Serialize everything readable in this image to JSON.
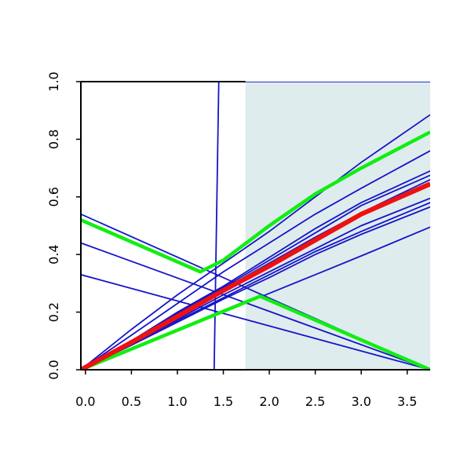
{
  "chart_data": {
    "type": "line",
    "title": "",
    "xlabel": "",
    "ylabel": "",
    "xlim": [
      -0.05,
      3.75
    ],
    "ylim": [
      0,
      1
    ],
    "grid": false,
    "x_ticks": [
      "0.0",
      "0.5",
      "1.0",
      "1.5",
      "2.0",
      "2.5",
      "3.0",
      "3.5"
    ],
    "y_ticks": [
      "0.0",
      "0.2",
      "0.4",
      "0.6",
      "0.8",
      "1.0"
    ],
    "shaded_region": {
      "x_from": 1.74,
      "x_to": 3.75,
      "y_from": 0,
      "y_to": 1,
      "color": "#dfeced"
    },
    "colors": {
      "thin": "#1515c8",
      "mean": "#ee1111",
      "band": "#11ee11",
      "axis": "#000000"
    },
    "series": [
      {
        "style": "thin",
        "points": [
          [
            -0.05,
            0
          ],
          [
            1.4,
            0
          ],
          [
            1.45,
            1
          ],
          [
            3.75,
            1
          ]
        ]
      },
      {
        "style": "thin",
        "points": [
          [
            -0.05,
            0.54
          ],
          [
            3.75,
            0
          ]
        ]
      },
      {
        "style": "thin",
        "points": [
          [
            -0.05,
            0.44
          ],
          [
            3.75,
            0
          ]
        ]
      },
      {
        "style": "thin",
        "points": [
          [
            -0.05,
            0.33
          ],
          [
            3.75,
            0
          ]
        ]
      },
      {
        "style": "thin",
        "points": [
          [
            -0.05,
            0
          ],
          [
            0.5,
            0.14
          ],
          [
            1.0,
            0.26
          ],
          [
            1.5,
            0.37
          ],
          [
            2.0,
            0.48
          ],
          [
            2.5,
            0.6
          ],
          [
            3.0,
            0.72
          ],
          [
            3.75,
            0.885
          ]
        ]
      },
      {
        "style": "thin",
        "points": [
          [
            -0.05,
            0
          ],
          [
            0.5,
            0.12
          ],
          [
            1.0,
            0.23
          ],
          [
            1.5,
            0.34
          ],
          [
            2.0,
            0.44
          ],
          [
            2.5,
            0.54
          ],
          [
            3.0,
            0.63
          ],
          [
            3.75,
            0.76
          ]
        ]
      },
      {
        "style": "thin",
        "points": [
          [
            -0.05,
            0
          ],
          [
            0.5,
            0.1
          ],
          [
            1.0,
            0.2
          ],
          [
            1.5,
            0.29
          ],
          [
            2.0,
            0.39
          ],
          [
            2.5,
            0.49
          ],
          [
            3.0,
            0.58
          ],
          [
            3.75,
            0.69
          ]
        ]
      },
      {
        "style": "thin",
        "points": [
          [
            -0.05,
            0
          ],
          [
            0.5,
            0.1
          ],
          [
            1.0,
            0.195
          ],
          [
            1.5,
            0.285
          ],
          [
            2.0,
            0.38
          ],
          [
            2.5,
            0.475
          ],
          [
            3.0,
            0.57
          ],
          [
            3.75,
            0.675
          ]
        ]
      },
      {
        "style": "thin",
        "points": [
          [
            -0.05,
            0
          ],
          [
            0.5,
            0.095
          ],
          [
            1.0,
            0.19
          ],
          [
            1.5,
            0.28
          ],
          [
            2.0,
            0.37
          ],
          [
            2.5,
            0.46
          ],
          [
            3.0,
            0.545
          ],
          [
            3.75,
            0.66
          ]
        ]
      },
      {
        "style": "thin",
        "points": [
          [
            -0.05,
            0
          ],
          [
            0.5,
            0.09
          ],
          [
            1.0,
            0.175
          ],
          [
            1.5,
            0.26
          ],
          [
            2.0,
            0.34
          ],
          [
            2.5,
            0.42
          ],
          [
            3.0,
            0.5
          ],
          [
            3.75,
            0.595
          ]
        ]
      },
      {
        "style": "thin",
        "points": [
          [
            -0.05,
            0
          ],
          [
            0.5,
            0.09
          ],
          [
            1.0,
            0.17
          ],
          [
            1.5,
            0.25
          ],
          [
            2.0,
            0.33
          ],
          [
            2.5,
            0.41
          ],
          [
            3.0,
            0.48
          ],
          [
            3.75,
            0.58
          ]
        ]
      },
      {
        "style": "thin",
        "points": [
          [
            -0.05,
            0
          ],
          [
            0.5,
            0.085
          ],
          [
            1.0,
            0.165
          ],
          [
            1.5,
            0.245
          ],
          [
            2.0,
            0.32
          ],
          [
            2.5,
            0.4
          ],
          [
            3.0,
            0.47
          ],
          [
            3.75,
            0.565
          ]
        ]
      },
      {
        "style": "thin",
        "points": [
          [
            -0.05,
            0
          ],
          [
            0.5,
            0.07
          ],
          [
            1.0,
            0.135
          ],
          [
            1.5,
            0.2
          ],
          [
            2.0,
            0.265
          ],
          [
            2.5,
            0.33
          ],
          [
            3.0,
            0.395
          ],
          [
            3.75,
            0.495
          ]
        ]
      },
      {
        "style": "band",
        "points": [
          [
            -0.05,
            0.52
          ],
          [
            1.25,
            0.34
          ],
          [
            1.5,
            0.38
          ],
          [
            2.0,
            0.5
          ],
          [
            2.5,
            0.61
          ],
          [
            3.0,
            0.7
          ],
          [
            3.75,
            0.825
          ]
        ]
      },
      {
        "style": "band",
        "points": [
          [
            -0.05,
            0
          ],
          [
            1.9,
            0.255
          ],
          [
            3.75,
            0
          ]
        ]
      },
      {
        "style": "mean",
        "points": [
          [
            -0.05,
            0
          ],
          [
            0.5,
            0.095
          ],
          [
            1.0,
            0.185
          ],
          [
            1.5,
            0.275
          ],
          [
            2.0,
            0.36
          ],
          [
            2.5,
            0.45
          ],
          [
            3.0,
            0.54
          ],
          [
            3.75,
            0.645
          ]
        ]
      }
    ]
  }
}
